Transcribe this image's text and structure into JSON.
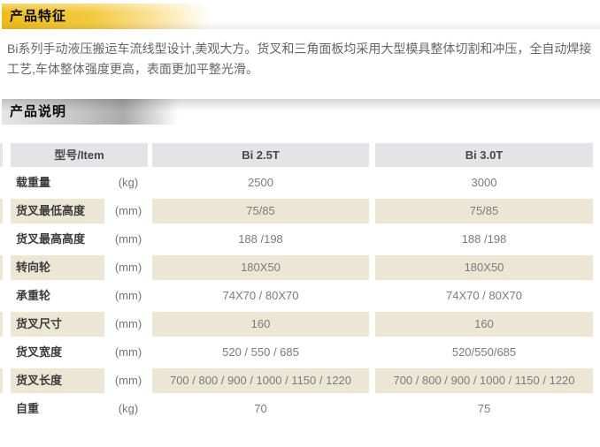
{
  "features": {
    "title": "产品特征",
    "line1": "Bi系列手动液压搬运车流线型设计,美观大方。货叉和三角面板均采用大型模具整体切割和冲压，全自动焊接",
    "line2": "工艺,车体整体强度更高，表面更加平整光滑。"
  },
  "specs": {
    "title": "产品说明",
    "table": {
      "header": {
        "item": "型号/Item",
        "col1": "Bi 2.5T",
        "col2": "Bi 3.0T"
      },
      "rows": [
        {
          "label": "载重量",
          "unit": "(kg)",
          "bi25": "2500",
          "bi30": "3000"
        },
        {
          "label": "货叉最低高度",
          "unit": "(mm)",
          "bi25": "75/85",
          "bi30": "75/85"
        },
        {
          "label": "货叉最高高度",
          "unit": "(mm)",
          "bi25": "188 /198",
          "bi30": "188 /198"
        },
        {
          "label": "转向轮",
          "unit": "(mm)",
          "bi25": "180X50",
          "bi30": "180X50"
        },
        {
          "label": "承重轮",
          "unit": "(mm)",
          "bi25": "74X70 / 80X70",
          "bi30": "74X70 / 80X70"
        },
        {
          "label": "货叉尺寸",
          "unit": "(mm)",
          "bi25": "160",
          "bi30": "160"
        },
        {
          "label": "货叉宽度",
          "unit": "(mm)",
          "bi25": "520 / 550 / 685",
          "bi30": "520/550/685"
        },
        {
          "label": "货叉长度",
          "unit": "(mm)",
          "bi25": "700 / 800 / 900 / 1000 / 1150 / 1220",
          "bi30": "700 / 800 / 900 / 1000 / 1150 / 1220"
        },
        {
          "label": "自重",
          "unit": "(kg)",
          "bi25": "70",
          "bi30": "75"
        }
      ]
    }
  },
  "colors": {
    "banner_gold": "#eebc1b",
    "banner_grey": "#ababab",
    "table_head_bg": "#e4e4e6",
    "row_alt_bg": "#ebe7d4",
    "label_text": "#3c3c3c",
    "value_text": "#7b7b7b",
    "paragraph_text": "#666666"
  }
}
